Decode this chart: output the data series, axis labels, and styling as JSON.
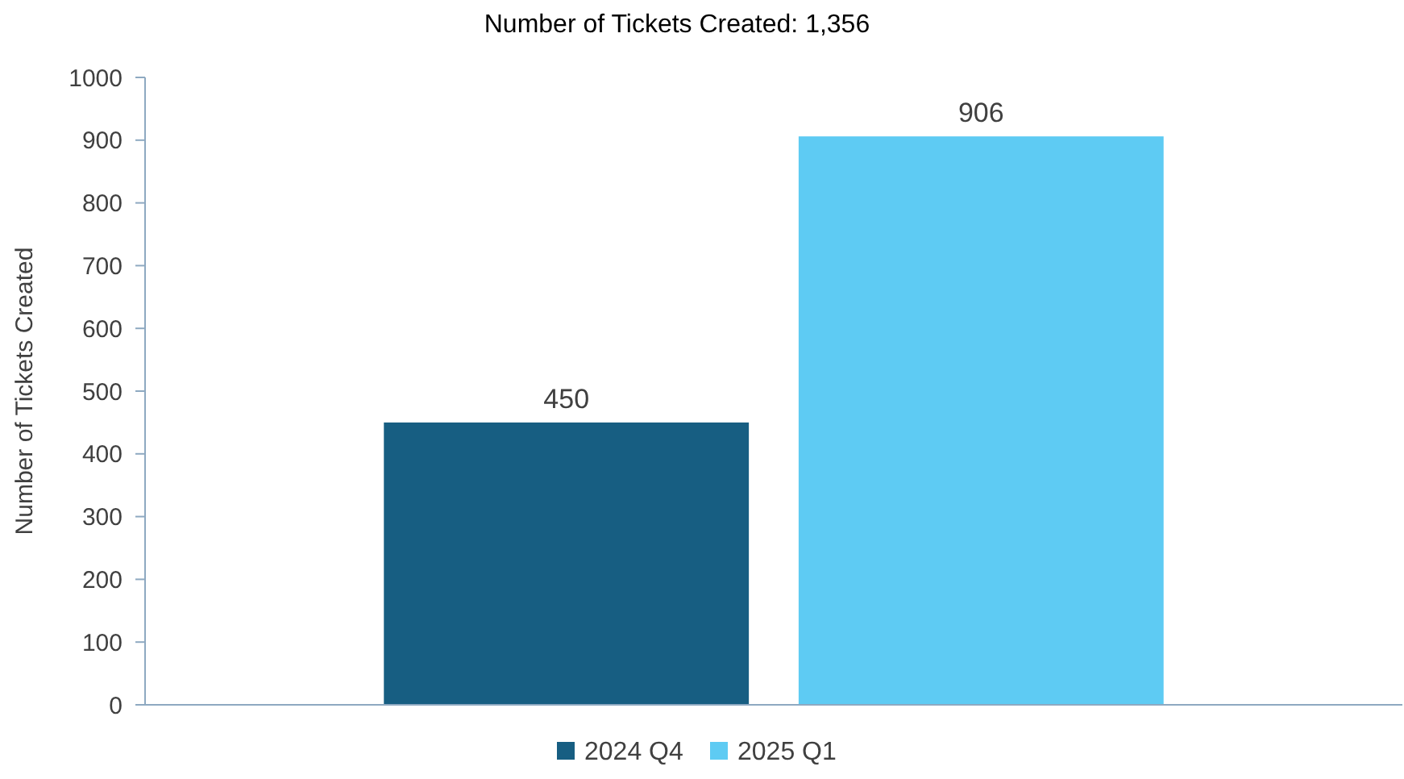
{
  "chart_data": {
    "type": "bar",
    "title": "Number of Tickets Created: 1,356",
    "ylabel": "Number of Tickets Created",
    "categories": [
      null
    ],
    "series": [
      {
        "name": "2024 Q4",
        "color": "#175e82",
        "values": [
          450
        ]
      },
      {
        "name": "2025 Q1",
        "color": "#5ecbf3",
        "values": [
          906
        ]
      }
    ],
    "ylim": [
      0,
      1000
    ],
    "yticks": [
      0,
      100,
      200,
      300,
      400,
      500,
      600,
      700,
      800,
      900,
      1000
    ],
    "data_labels": true,
    "legend": "bottom",
    "grid": false
  }
}
